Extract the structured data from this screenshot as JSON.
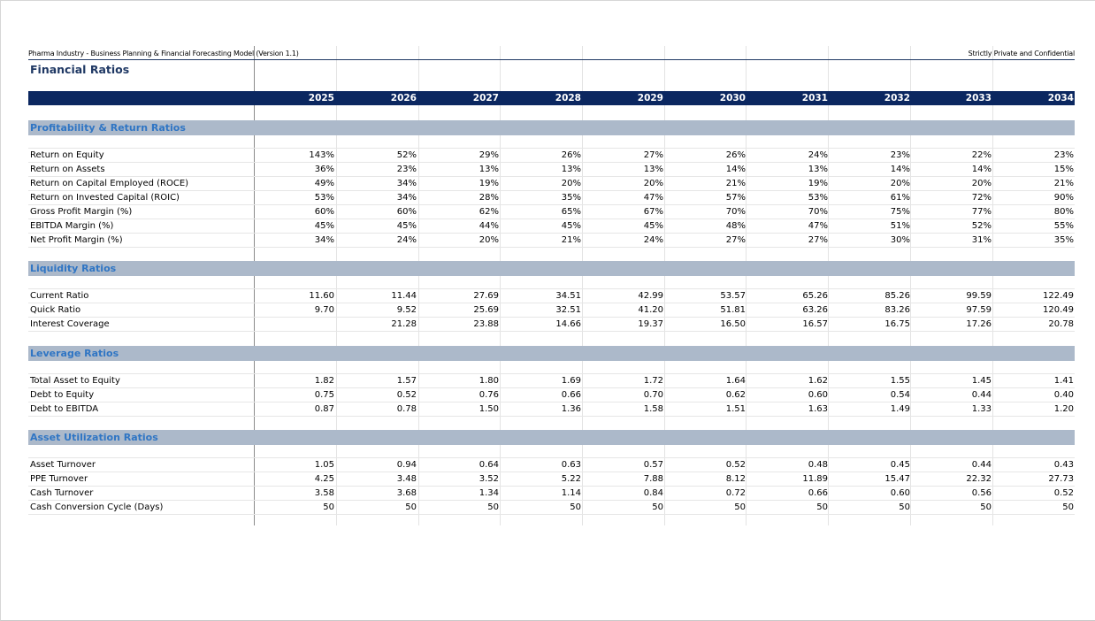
{
  "header": {
    "model_title": "Pharma Industry - Business Planning & Financial Forecasting Model (Version 1.1)",
    "confidentiality": "Strictly Private and Confidential",
    "page_title": "Financial Ratios"
  },
  "years": [
    "2025",
    "2026",
    "2027",
    "2028",
    "2029",
    "2030",
    "2031",
    "2032",
    "2033",
    "2034"
  ],
  "sections": [
    {
      "title": "Profitability & Return Ratios",
      "rows": [
        {
          "label": "Return on Equity",
          "values": [
            "143%",
            "52%",
            "29%",
            "26%",
            "27%",
            "26%",
            "24%",
            "23%",
            "22%",
            "23%"
          ]
        },
        {
          "label": "Return on Assets",
          "values": [
            "36%",
            "23%",
            "13%",
            "13%",
            "13%",
            "14%",
            "13%",
            "14%",
            "14%",
            "15%"
          ]
        },
        {
          "label": "Return on Capital Employed (ROCE)",
          "values": [
            "49%",
            "34%",
            "19%",
            "20%",
            "20%",
            "21%",
            "19%",
            "20%",
            "20%",
            "21%"
          ]
        },
        {
          "label": "Return on Invested Capital (ROIC)",
          "values": [
            "53%",
            "34%",
            "28%",
            "35%",
            "47%",
            "57%",
            "53%",
            "61%",
            "72%",
            "90%"
          ]
        },
        {
          "label": "Gross Profit Margin (%)",
          "values": [
            "60%",
            "60%",
            "62%",
            "65%",
            "67%",
            "70%",
            "70%",
            "75%",
            "77%",
            "80%"
          ]
        },
        {
          "label": "EBITDA Margin (%)",
          "values": [
            "45%",
            "45%",
            "44%",
            "45%",
            "45%",
            "48%",
            "47%",
            "51%",
            "52%",
            "55%"
          ]
        },
        {
          "label": "Net Profit Margin (%)",
          "values": [
            "34%",
            "24%",
            "20%",
            "21%",
            "24%",
            "27%",
            "27%",
            "30%",
            "31%",
            "35%"
          ]
        }
      ]
    },
    {
      "title": "Liquidity Ratios",
      "rows": [
        {
          "label": "Current Ratio",
          "values": [
            "11.60",
            "11.44",
            "27.69",
            "34.51",
            "42.99",
            "53.57",
            "65.26",
            "85.26",
            "99.59",
            "122.49"
          ]
        },
        {
          "label": "Quick Ratio",
          "values": [
            "9.70",
            "9.52",
            "25.69",
            "32.51",
            "41.20",
            "51.81",
            "63.26",
            "83.26",
            "97.59",
            "120.49"
          ]
        },
        {
          "label": "Interest Coverage",
          "values": [
            "",
            "21.28",
            "23.88",
            "14.66",
            "19.37",
            "16.50",
            "16.57",
            "16.75",
            "17.26",
            "20.78"
          ]
        }
      ]
    },
    {
      "title": "Leverage Ratios",
      "rows": [
        {
          "label": "Total Asset to Equity",
          "values": [
            "1.82",
            "1.57",
            "1.80",
            "1.69",
            "1.72",
            "1.64",
            "1.62",
            "1.55",
            "1.45",
            "1.41"
          ]
        },
        {
          "label": "Debt to Equity",
          "values": [
            "0.75",
            "0.52",
            "0.76",
            "0.66",
            "0.70",
            "0.62",
            "0.60",
            "0.54",
            "0.44",
            "0.40"
          ]
        },
        {
          "label": "Debt to EBITDA",
          "values": [
            "0.87",
            "0.78",
            "1.50",
            "1.36",
            "1.58",
            "1.51",
            "1.63",
            "1.49",
            "1.33",
            "1.20"
          ]
        }
      ]
    },
    {
      "title": "Asset Utilization Ratios",
      "rows": [
        {
          "label": "Asset Turnover",
          "values": [
            "1.05",
            "0.94",
            "0.64",
            "0.63",
            "0.57",
            "0.52",
            "0.48",
            "0.45",
            "0.44",
            "0.43"
          ]
        },
        {
          "label": "PPE Turnover",
          "values": [
            "4.25",
            "3.48",
            "3.52",
            "5.22",
            "7.88",
            "8.12",
            "11.89",
            "15.47",
            "22.32",
            "27.73"
          ]
        },
        {
          "label": "Cash Turnover",
          "values": [
            "3.58",
            "3.68",
            "1.34",
            "1.14",
            "0.84",
            "0.72",
            "0.66",
            "0.60",
            "0.56",
            "0.52"
          ]
        },
        {
          "label": "Cash Conversion Cycle (Days)",
          "values": [
            "50",
            "50",
            "50",
            "50",
            "50",
            "50",
            "50",
            "50",
            "50",
            "50"
          ]
        }
      ]
    }
  ],
  "colors": {
    "header_bar": "#0b2760",
    "section_bar": "#acb9ca",
    "section_text": "#2f75c4",
    "title_text": "#1f3864"
  }
}
